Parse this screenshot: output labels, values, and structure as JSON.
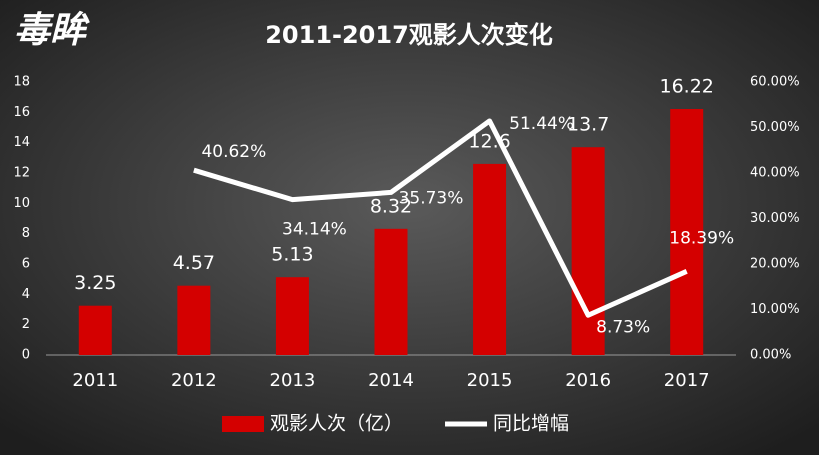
{
  "logo": "毒眸",
  "chart_data": {
    "type": "bar",
    "title": "2011-2017观影人次变化",
    "categories": [
      "2011",
      "2012",
      "2013",
      "2014",
      "2015",
      "2016",
      "2017"
    ],
    "series": [
      {
        "name": "观影人次（亿）",
        "type": "bar",
        "color": "#d40000",
        "values": [
          3.25,
          4.57,
          5.13,
          8.32,
          12.6,
          13.7,
          16.22
        ]
      },
      {
        "name": "同比增幅",
        "type": "line",
        "axis": "y2",
        "color": "#ffffff",
        "values": [
          null,
          40.62,
          34.14,
          35.73,
          51.44,
          8.73,
          18.39
        ],
        "value_labels": [
          null,
          "40.62%",
          "34.14%",
          "35.73%",
          "51.44%",
          "8.73%",
          "18.39%"
        ]
      }
    ],
    "ylim": [
      0,
      18
    ],
    "yticks": [
      0,
      2,
      4,
      6,
      8,
      10,
      12,
      14,
      16,
      18
    ],
    "y2lim": [
      0,
      60
    ],
    "y2ticks": [
      {
        "value": 0,
        "label": "0.00%"
      },
      {
        "value": 10,
        "label": "10.00%"
      },
      {
        "value": 20,
        "label": "20.00%"
      },
      {
        "value": 30,
        "label": "30.00%"
      },
      {
        "value": 40,
        "label": "40.00%"
      },
      {
        "value": 50,
        "label": "50.00%"
      },
      {
        "value": 60,
        "label": "60.00%"
      }
    ],
    "legend": "bottom"
  }
}
